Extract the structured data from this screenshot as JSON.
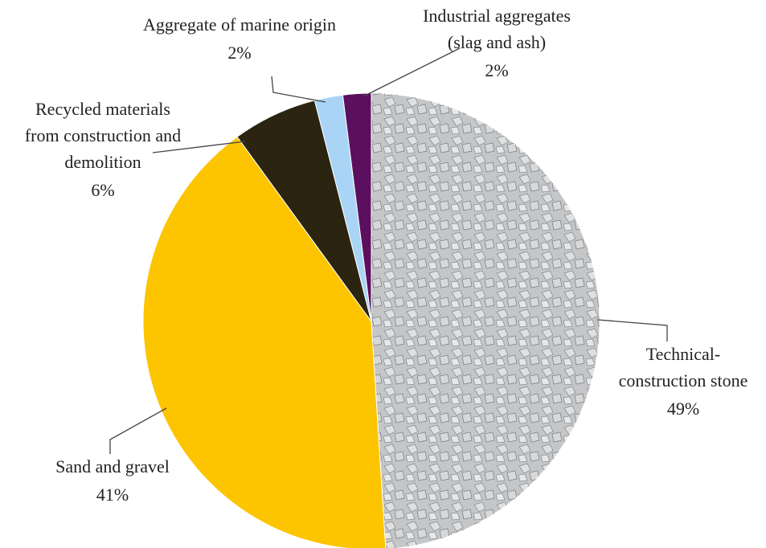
{
  "chart_data": {
    "type": "pie",
    "categories": [
      [
        "Technical-",
        "construction stone"
      ],
      [
        "Sand and gravel"
      ],
      [
        "Recycled materials",
        "from construction and",
        "demolition"
      ],
      [
        "Aggregate of marine origin"
      ],
      [
        "Industrial aggregates",
        "(slag and ash)"
      ]
    ],
    "values": [
      49,
      41,
      6,
      2,
      2
    ],
    "value_labels": [
      "49%",
      "41%",
      "6%",
      "2%",
      "2%"
    ],
    "colors": [
      "#c4c6c8",
      "#fcc500",
      "#2a2410",
      "#a9d4f5",
      "#5c0f5e"
    ]
  }
}
